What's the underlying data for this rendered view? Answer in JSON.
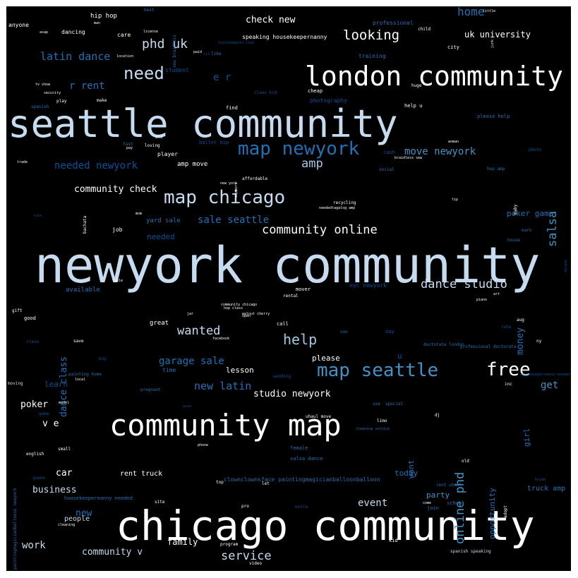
{
  "palette": {
    "background": "#000000",
    "white": "#ffffff",
    "pale_blue": "#c6dbef",
    "light_blue": "#9ecae1",
    "mid_blue": "#4292c6",
    "blue": "#2171b5",
    "dark_blue": "#08519c"
  },
  "words": [
    {
      "text": "newyork community",
      "color": "pale_blue"
    },
    {
      "text": "seattle community",
      "color": "pale_blue"
    },
    {
      "text": "chicago community",
      "color": "white"
    },
    {
      "text": "london community",
      "color": "white"
    },
    {
      "text": "community map",
      "color": "white"
    },
    {
      "text": "map chicago",
      "color": "pale_blue"
    },
    {
      "text": "map newyork",
      "color": "blue"
    },
    {
      "text": "map seattle",
      "color": "mid_blue"
    },
    {
      "text": "free",
      "color": "white"
    },
    {
      "text": "need",
      "color": "pale_blue"
    },
    {
      "text": "community online",
      "color": "white"
    },
    {
      "text": "dance studio",
      "color": "pale_blue"
    },
    {
      "text": "looking",
      "color": "white"
    },
    {
      "text": "help",
      "color": "light_blue"
    },
    {
      "text": "wanted",
      "color": "pale_blue"
    },
    {
      "text": "salsa",
      "color": "mid_blue"
    },
    {
      "text": "online phd",
      "color": "mid_blue"
    },
    {
      "text": "latin dance",
      "color": "blue"
    },
    {
      "text": "phd uk",
      "color": "pale_blue"
    },
    {
      "text": "amp",
      "color": "light_blue"
    },
    {
      "text": "sale seattle",
      "color": "blue"
    },
    {
      "text": "new latin",
      "color": "blue"
    },
    {
      "text": "garage sale",
      "color": "blue"
    },
    {
      "text": "studio newyork",
      "color": "white"
    },
    {
      "text": "service",
      "color": "pale_blue"
    },
    {
      "text": "event",
      "color": "pale_blue"
    },
    {
      "text": "move newyork",
      "color": "mid_blue"
    },
    {
      "text": "needed newyork",
      "color": "dark_blue"
    },
    {
      "text": "r rent",
      "color": "blue"
    },
    {
      "text": "e r",
      "color": "dark_blue"
    },
    {
      "text": "home",
      "color": "blue"
    },
    {
      "text": "check new",
      "color": "white"
    },
    {
      "text": "uk university",
      "color": "white"
    },
    {
      "text": "community check",
      "color": "white"
    },
    {
      "text": "poker game",
      "color": "blue"
    },
    {
      "text": "get",
      "color": "mid_blue"
    },
    {
      "text": "community v",
      "color": "pale_blue"
    },
    {
      "text": "work",
      "color": "pale_blue"
    },
    {
      "text": "business",
      "color": "pale_blue"
    },
    {
      "text": "car",
      "color": "white"
    },
    {
      "text": "poker",
      "color": "white"
    },
    {
      "text": "v e",
      "color": "white"
    },
    {
      "text": "dance class",
      "color": "blue"
    },
    {
      "text": "money",
      "color": "blue"
    },
    {
      "text": "new",
      "color": "blue"
    },
    {
      "text": "family",
      "color": "white"
    },
    {
      "text": "party",
      "color": "mid_blue"
    },
    {
      "text": "today",
      "color": "blue"
    },
    {
      "text": "want",
      "color": "blue"
    },
    {
      "text": "opportunity",
      "color": "blue"
    },
    {
      "text": "girl",
      "color": "blue"
    },
    {
      "text": "truck amp",
      "color": "blue"
    },
    {
      "text": "people",
      "color": "pale_blue"
    },
    {
      "text": "learn",
      "color": "dark_blue"
    },
    {
      "text": "please",
      "color": "white"
    },
    {
      "text": "lesson",
      "color": "white"
    },
    {
      "text": "u",
      "color": "dark_blue"
    },
    {
      "text": "rent truck",
      "color": "white"
    },
    {
      "text": "available",
      "color": "blue"
    },
    {
      "text": "needed",
      "color": "dark_blue"
    },
    {
      "text": "job",
      "color": "white"
    },
    {
      "text": "great",
      "color": "white"
    },
    {
      "text": "yard sale",
      "color": "blue"
    },
    {
      "text": "amp move",
      "color": "white"
    },
    {
      "text": "hip hop",
      "color": "white"
    },
    {
      "text": "anyone",
      "color": "white"
    },
    {
      "text": "dancing",
      "color": "white"
    },
    {
      "text": "care",
      "color": "white"
    },
    {
      "text": "student",
      "color": "dark_blue"
    },
    {
      "text": "speaking housekeepernanny",
      "color": "white"
    },
    {
      "text": "professional",
      "color": "blue"
    },
    {
      "text": "training",
      "color": "blue"
    },
    {
      "text": "photography",
      "color": "dark_blue"
    },
    {
      "text": "find",
      "color": "white"
    },
    {
      "text": "cheap",
      "color": "white"
    },
    {
      "text": "help u",
      "color": "white"
    },
    {
      "text": "please help",
      "color": "blue"
    },
    {
      "text": "player",
      "color": "white"
    },
    {
      "text": "ballet hip",
      "color": "dark_blue"
    },
    {
      "text": "cash",
      "color": "dark_blue"
    },
    {
      "text": "affordable",
      "color": "white"
    },
    {
      "text": "social",
      "color": "blue"
    },
    {
      "text": "hop amp",
      "color": "blue"
    },
    {
      "text": "recycling",
      "color": "white"
    },
    {
      "text": "neededtagalog amp",
      "color": "white"
    },
    {
      "text": "house",
      "color": "blue"
    },
    {
      "text": "earn",
      "color": "blue"
    },
    {
      "text": "nyc newyork",
      "color": "dark_blue"
    },
    {
      "text": "mover",
      "color": "white"
    },
    {
      "text": "rental",
      "color": "white"
    },
    {
      "text": "community chicago",
      "color": "white"
    },
    {
      "text": "hop class",
      "color": "white"
    },
    {
      "text": "walnut cherry",
      "color": "white"
    },
    {
      "text": "call",
      "color": "white"
    },
    {
      "text": "doctorate london",
      "color": "blue"
    },
    {
      "text": "professional doctorate",
      "color": "blue"
    },
    {
      "text": "painting home",
      "color": "blue"
    },
    {
      "text": "wedding",
      "color": "dark_blue"
    },
    {
      "text": "pregnant",
      "color": "blue"
    },
    {
      "text": "time",
      "color": "blue"
    },
    {
      "text": "clownclownsface paintingmagicianballoonballoon",
      "color": "blue"
    },
    {
      "text": "uhaul move",
      "color": "white"
    },
    {
      "text": "special",
      "color": "blue"
    },
    {
      "text": "cleaning service",
      "color": "blue"
    },
    {
      "text": "salsa dance",
      "color": "blue"
    },
    {
      "text": "female",
      "color": "blue"
    },
    {
      "text": "rent uhaul",
      "color": "blue"
    },
    {
      "text": "school",
      "color": "blue"
    },
    {
      "text": "join",
      "color": "blue"
    },
    {
      "text": "housekeepernanny needed",
      "color": "blue"
    },
    {
      "text": "paintingmagicianballoons newyork",
      "color": "blue"
    },
    {
      "text": "spanish speaking",
      "color": "pale_blue"
    },
    {
      "text": "english",
      "color": "white"
    },
    {
      "text": "moving",
      "color": "pale_blue"
    },
    {
      "text": "small",
      "color": "white"
    },
    {
      "text": "good",
      "color": "white"
    },
    {
      "text": "gift",
      "color": "white"
    },
    {
      "text": "class",
      "color": "dark_blue"
    },
    {
      "text": "save",
      "color": "white"
    },
    {
      "text": "program",
      "color": "white"
    },
    {
      "text": "video",
      "color": "white"
    },
    {
      "text": "kid",
      "color": "white"
    },
    {
      "text": "top",
      "color": "white"
    },
    {
      "text": "let",
      "color": "white"
    },
    {
      "text": "pro",
      "color": "white"
    },
    {
      "text": "cleaning",
      "color": "white"
    },
    {
      "text": "queen",
      "color": "dark_blue"
    },
    {
      "text": "extra",
      "color": "dark_blue"
    },
    {
      "text": "site",
      "color": "white"
    },
    {
      "text": "come",
      "color": "white"
    },
    {
      "text": "adopt",
      "color": "white"
    },
    {
      "text": "dj",
      "color": "white"
    },
    {
      "text": "limo",
      "color": "white"
    },
    {
      "text": "old",
      "color": "white"
    },
    {
      "text": "inc",
      "color": "white"
    },
    {
      "text": "ny",
      "color": "white"
    },
    {
      "text": "aug",
      "color": "white"
    },
    {
      "text": "rate",
      "color": "dark_blue"
    },
    {
      "text": "van",
      "color": "blue"
    },
    {
      "text": "day",
      "color": "dark_blue"
    },
    {
      "text": "use",
      "color": "blue"
    },
    {
      "text": "phone",
      "color": "white"
    },
    {
      "text": "avon",
      "color": "dark_blue"
    },
    {
      "text": "facebook",
      "color": "white"
    },
    {
      "text": "buy",
      "color": "dark_blue"
    },
    {
      "text": "local",
      "color": "white"
    },
    {
      "text": "model",
      "color": "white"
    },
    {
      "text": "game",
      "color": "dark_blue"
    },
    {
      "text": "open",
      "color": "white"
    },
    {
      "text": "jar",
      "color": "white"
    },
    {
      "text": "piano",
      "color": "white"
    },
    {
      "text": "art",
      "color": "white"
    },
    {
      "text": "table",
      "color": "white"
    },
    {
      "text": "mom",
      "color": "white"
    },
    {
      "text": "bachata",
      "color": "white"
    },
    {
      "text": "new york",
      "color": "white"
    },
    {
      "text": "support",
      "color": "white"
    },
    {
      "text": "trade",
      "color": "white"
    },
    {
      "text": "loving",
      "color": "white"
    },
    {
      "text": "one",
      "color": "white"
    },
    {
      "text": "make",
      "color": "white"
    },
    {
      "text": "play",
      "color": "white"
    },
    {
      "text": "spanish",
      "color": "blue"
    },
    {
      "text": "security",
      "color": "white"
    },
    {
      "text": "tv show",
      "color": "white"
    },
    {
      "text": "asap",
      "color": "white"
    },
    {
      "text": "man",
      "color": "white"
    },
    {
      "text": "best",
      "color": "blue"
    },
    {
      "text": "license",
      "color": "white"
    },
    {
      "text": "location",
      "color": "white"
    },
    {
      "text": "paid",
      "color": "white"
    },
    {
      "text": "like",
      "color": "blue"
    },
    {
      "text": "child",
      "color": "white"
    },
    {
      "text": "city",
      "color": "white"
    },
    {
      "text": "junk",
      "color": "white"
    },
    {
      "text": "tip",
      "color": "white"
    },
    {
      "text": "baby",
      "color": "white"
    },
    {
      "text": "woman",
      "color": "white"
    },
    {
      "text": "photo",
      "color": "dark_blue"
    },
    {
      "text": "braidless sew",
      "color": "white"
    },
    {
      "text": "fast",
      "color": "blue"
    },
    {
      "text": "pay",
      "color": "white"
    },
    {
      "text": "donate",
      "color": "dark_blue"
    },
    {
      "text": "little",
      "color": "white"
    },
    {
      "text": "sew braidless",
      "color": "blue"
    },
    {
      "text": "class kid",
      "color": "dark_blue"
    },
    {
      "text": "huge",
      "color": "white"
    },
    {
      "text": "lit",
      "color": "dark_blue"
    },
    {
      "text": "role",
      "color": "dark_blue"
    },
    {
      "text": "housekeepernanny needed",
      "color": "dark_blue"
    },
    {
      "text": "fusionemporo link",
      "color": "dark_blue"
    },
    {
      "text": "bride",
      "color": "dark_blue"
    },
    {
      "text": "hand",
      "color": "dark_blue"
    },
    {
      "text": "fusionemporo",
      "color": "dark_blue"
    }
  ]
}
